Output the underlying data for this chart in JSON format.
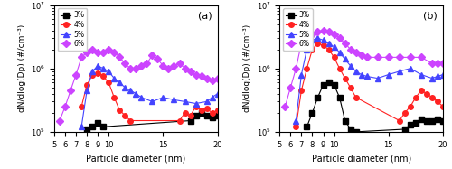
{
  "panel_a": {
    "label": "(a)",
    "series": {
      "3%": {
        "color": "black",
        "marker": "s",
        "x": [
          8.0,
          8.5,
          9.0,
          9.5,
          17.5,
          18.0,
          18.5,
          19.0,
          19.5,
          20.0
        ],
        "y": [
          110000.0,
          120000.0,
          140000.0,
          120000.0,
          150000.0,
          180000.0,
          200000.0,
          180000.0,
          170000.0,
          180000.0
        ]
      },
      "4%": {
        "color": "#ff2222",
        "marker": "o",
        "x": [
          7.5,
          8.0,
          8.5,
          9.0,
          9.5,
          10.0,
          10.5,
          11.0,
          11.5,
          12.0,
          16.5,
          17.0,
          17.5,
          18.0,
          18.5,
          19.0,
          19.5,
          20.0
        ],
        "y": [
          250000.0,
          550000.0,
          800000.0,
          850000.0,
          750000.0,
          600000.0,
          350000.0,
          220000.0,
          180000.0,
          150000.0,
          150000.0,
          200000.0,
          180000.0,
          250000.0,
          220000.0,
          230000.0,
          200000.0,
          220000.0
        ]
      },
      "5%": {
        "color": "#4444ff",
        "marker": "^",
        "x": [
          7.5,
          8.0,
          8.5,
          9.0,
          9.5,
          10.0,
          10.5,
          11.0,
          11.5,
          12.0,
          12.5,
          13.0,
          14.0,
          15.0,
          16.0,
          17.0,
          18.0,
          19.0,
          19.5,
          20.0
        ],
        "y": [
          120000.0,
          450000.0,
          900000.0,
          1100000.0,
          1000000.0,
          900000.0,
          700000.0,
          600000.0,
          500000.0,
          450000.0,
          400000.0,
          350000.0,
          300000.0,
          350000.0,
          320000.0,
          300000.0,
          280000.0,
          300000.0,
          350000.0,
          400000.0
        ]
      },
      "6%": {
        "color": "#cc44ff",
        "marker": "D",
        "x": [
          5.5,
          6.0,
          6.5,
          7.0,
          7.5,
          8.0,
          8.5,
          9.0,
          9.5,
          10.0,
          10.5,
          11.0,
          11.5,
          12.0,
          12.5,
          13.0,
          13.5,
          14.0,
          14.5,
          15.0,
          15.5,
          16.0,
          16.5,
          17.0,
          17.5,
          18.0,
          18.5,
          19.0,
          19.5,
          20.0
        ],
        "y": [
          150000.0,
          250000.0,
          450000.0,
          800000.0,
          1500000.0,
          1800000.0,
          2000000.0,
          1800000.0,
          1800000.0,
          2000000.0,
          1800000.0,
          1500000.0,
          1200000.0,
          1000000.0,
          1000000.0,
          1100000.0,
          1200000.0,
          1600000.0,
          1400000.0,
          1100000.0,
          1000000.0,
          1100000.0,
          1200000.0,
          1000000.0,
          900000.0,
          800000.0,
          750000.0,
          700000.0,
          650000.0,
          700000.0
        ]
      }
    }
  },
  "panel_b": {
    "label": "(b)",
    "series": {
      "3%": {
        "color": "black",
        "marker": "s",
        "x": [
          7.5,
          8.0,
          8.5,
          9.0,
          9.5,
          10.0,
          10.5,
          11.0,
          11.5,
          12.0,
          16.5,
          17.0,
          17.5,
          18.0,
          18.5,
          19.0,
          19.5,
          20.0
        ],
        "y": [
          120000.0,
          200000.0,
          350000.0,
          550000.0,
          600000.0,
          550000.0,
          350000.0,
          150000.0,
          110000.0,
          100000.0,
          110000.0,
          130000.0,
          140000.0,
          160000.0,
          150000.0,
          150000.0,
          160000.0,
          150000.0
        ]
      },
      "4%": {
        "color": "#ff2222",
        "marker": "o",
        "x": [
          6.5,
          7.0,
          7.5,
          8.0,
          8.5,
          9.0,
          9.5,
          10.0,
          10.5,
          11.0,
          11.5,
          12.0,
          16.0,
          16.5,
          17.0,
          17.5,
          18.0,
          18.5,
          19.0,
          19.5,
          20.0
        ],
        "y": [
          120000.0,
          450000.0,
          1000000.0,
          2000000.0,
          2500000.0,
          2300000.0,
          2000000.0,
          1500000.0,
          1000000.0,
          700000.0,
          500000.0,
          350000.0,
          150000.0,
          200000.0,
          250000.0,
          350000.0,
          450000.0,
          400000.0,
          350000.0,
          300000.0,
          250000.0
        ]
      },
      "5%": {
        "color": "#4444ff",
        "marker": "^",
        "x": [
          6.5,
          7.0,
          7.5,
          8.0,
          8.5,
          9.0,
          9.5,
          10.0,
          10.5,
          11.0,
          11.5,
          12.0,
          12.5,
          13.0,
          14.0,
          15.0,
          16.0,
          17.0,
          18.0,
          19.0,
          19.5,
          20.0
        ],
        "y": [
          150000.0,
          800000.0,
          2000000.0,
          2800000.0,
          3000000.0,
          2800000.0,
          2500000.0,
          2200000.0,
          1800000.0,
          1400000.0,
          1100000.0,
          900000.0,
          800000.0,
          750000.0,
          700000.0,
          800000.0,
          900000.0,
          1000000.0,
          800000.0,
          700000.0,
          750000.0,
          800000.0
        ]
      },
      "6%": {
        "color": "#cc44ff",
        "marker": "D",
        "x": [
          5.5,
          6.0,
          6.5,
          7.0,
          7.5,
          8.0,
          8.5,
          9.0,
          9.5,
          10.0,
          10.5,
          11.0,
          11.5,
          12.0,
          12.5,
          13.0,
          14.0,
          15.0,
          16.0,
          17.0,
          18.0,
          19.0,
          19.5,
          20.0
        ],
        "y": [
          250000.0,
          500000.0,
          1000000.0,
          2500000.0,
          3500000.0,
          3500000.0,
          3800000.0,
          4000000.0,
          3800000.0,
          3500000.0,
          3000000.0,
          2500000.0,
          2000000.0,
          1800000.0,
          1600000.0,
          1500000.0,
          1500000.0,
          1500000.0,
          1500000.0,
          1500000.0,
          1500000.0,
          1200000.0,
          1200000.0,
          1200000.0
        ]
      }
    }
  },
  "xlim": [
    5,
    20
  ],
  "ylim_log": [
    100000.0,
    10000000.0
  ],
  "xlabel": "Particle diameter (nm)",
  "ylabel": "dN/dlog(Dp) (#/cm⁻³)",
  "legend_labels": [
    "3%",
    "4%",
    "5%",
    "6%"
  ],
  "legend_colors": [
    "black",
    "#ff2222",
    "#4444ff",
    "#cc44ff"
  ],
  "legend_markers": [
    "s",
    "o",
    "^",
    "D"
  ],
  "xticks": [
    5,
    6,
    7,
    8,
    9,
    10,
    15,
    20
  ],
  "marker_size": 4,
  "line_width": 0.8
}
